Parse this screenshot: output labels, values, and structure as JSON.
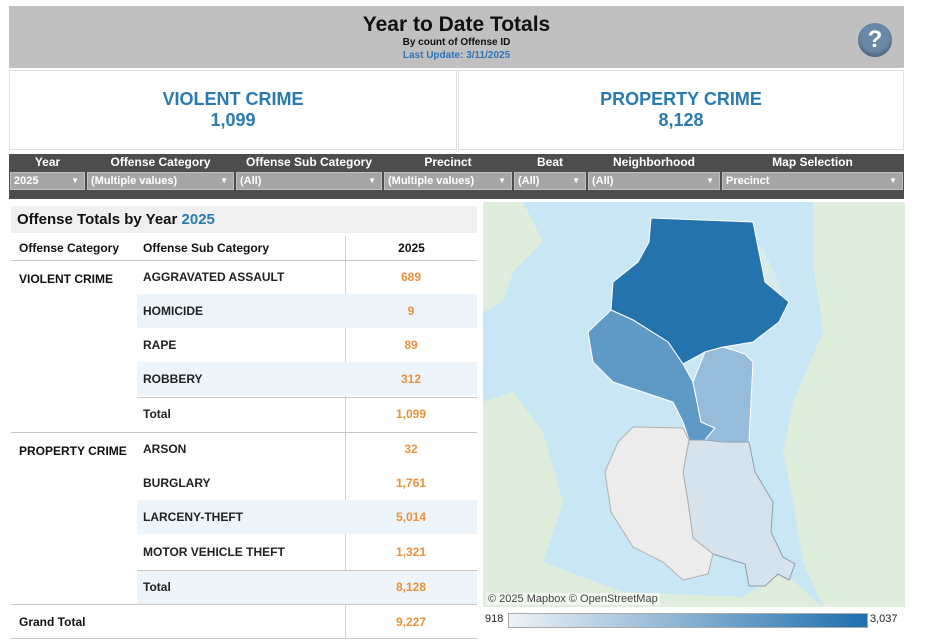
{
  "header": {
    "title": "Year to Date Totals",
    "subtitle": "By count of Offense ID",
    "last_update": "Last Update: 3/11/2025",
    "help_icon": "question-icon"
  },
  "kpis": {
    "violent": {
      "label": "VIOLENT CRIME",
      "value": "1,099"
    },
    "property": {
      "label": "PROPERTY CRIME",
      "value": "8,128"
    }
  },
  "filters": [
    {
      "label": "Year",
      "value": "2025"
    },
    {
      "label": "Offense Category",
      "value": "(Multiple values)"
    },
    {
      "label": "Offense Sub Category",
      "value": "(All)"
    },
    {
      "label": "Precinct",
      "value": "(Multiple values)"
    },
    {
      "label": "Beat",
      "value": "(All)"
    },
    {
      "label": "Neighborhood",
      "value": "(All)"
    },
    {
      "label": "Map Selection",
      "value": "Precinct"
    }
  ],
  "table": {
    "title": "Offense Totals by Year",
    "title_year": "2025",
    "headers": {
      "category": "Offense Category",
      "sub": "Offense Sub Category",
      "year": "2025"
    },
    "violent": {
      "category": "VIOLENT CRIME",
      "rows": [
        {
          "sub": "AGGRAVATED ASSAULT",
          "value": "689"
        },
        {
          "sub": "HOMICIDE",
          "value": "9"
        },
        {
          "sub": "RAPE",
          "value": "89"
        },
        {
          "sub": "ROBBERY",
          "value": "312"
        },
        {
          "sub": "Total",
          "value": "1,099"
        }
      ]
    },
    "property": {
      "category": "PROPERTY CRIME",
      "rows": [
        {
          "sub": "ARSON",
          "value": "32"
        },
        {
          "sub": "BURGLARY",
          "value": "1,761"
        },
        {
          "sub": "LARCENY-THEFT",
          "value": "5,014"
        },
        {
          "sub": "MOTOR VEHICLE THEFT",
          "value": "1,321"
        },
        {
          "sub": "Total",
          "value": "8,128"
        }
      ]
    },
    "grand_total": {
      "label": "Grand Total",
      "value": "9,227"
    }
  },
  "map": {
    "attribution": "© 2025 Mapbox  © OpenStreetMap",
    "legend_min": "918",
    "legend_max": "3,037",
    "colors": {
      "water": "#c9e6f5",
      "high": "#2573ad",
      "mid": "#5f9ac6",
      "low": "#97bcd9",
      "lowest": "#d7e3ec",
      "unselected": "#ececec"
    }
  }
}
